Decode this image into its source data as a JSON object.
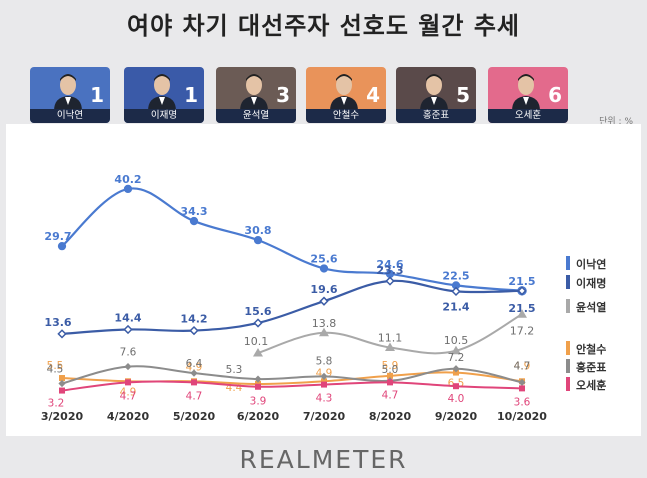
{
  "title": "여야 차기 대선주자 선호도 월간 추세",
  "unit": "단위 : %",
  "brand": "REALMETER",
  "candidates": [
    {
      "name": "이낙연",
      "rank": "1",
      "color": "#4a72c0"
    },
    {
      "name": "이재명",
      "rank": "1",
      "color": "#3a5aa8"
    },
    {
      "name": "윤석열",
      "rank": "3",
      "color": "#6b5b55"
    },
    {
      "name": "안철수",
      "rank": "4",
      "color": "#e9935a"
    },
    {
      "name": "홍준표",
      "rank": "5",
      "color": "#5a4a4a"
    },
    {
      "name": "오세훈",
      "rank": "6",
      "color": "#e36a8c"
    }
  ],
  "chart_data": {
    "type": "line",
    "title": "여야 차기 대선주자 선호도 월간 추세",
    "categories": [
      "3/2020",
      "4/2020",
      "5/2020",
      "6/2020",
      "7/2020",
      "8/2020",
      "9/2020",
      "10/2020"
    ],
    "ylabel": "단위 : %",
    "series": [
      {
        "name": "이낙연",
        "color": "#4a7ad0",
        "values": [
          29.7,
          40.2,
          34.3,
          30.8,
          25.6,
          24.6,
          22.5,
          21.5
        ]
      },
      {
        "name": "이재명",
        "color": "#3b5ca6",
        "values": [
          13.6,
          14.4,
          14.2,
          15.6,
          19.6,
          23.3,
          21.4,
          21.5
        ]
      },
      {
        "name": "윤석열",
        "color": "#a9a9a9",
        "values": [
          null,
          null,
          null,
          10.1,
          13.8,
          11.1,
          10.5,
          17.2
        ]
      },
      {
        "name": "안철수",
        "color": "#f0a04b",
        "values": [
          5.5,
          4.9,
          4.9,
          4.4,
          4.9,
          5.9,
          6.5,
          4.9
        ]
      },
      {
        "name": "홍준표",
        "color": "#8c8c8c",
        "values": [
          4.5,
          7.6,
          6.4,
          5.3,
          5.8,
          5.0,
          7.2,
          4.7
        ]
      },
      {
        "name": "오세훈",
        "color": "#e0457a",
        "values": [
          3.2,
          4.7,
          4.7,
          3.9,
          4.3,
          4.7,
          4.0,
          3.6
        ]
      }
    ]
  }
}
